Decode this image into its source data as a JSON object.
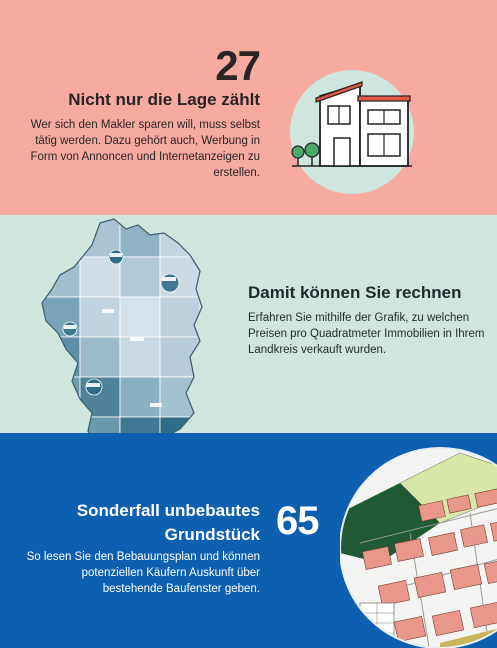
{
  "section1": {
    "number": "27",
    "heading": "Nicht nur die Lage zählt",
    "body": "Wer sich den Makler sparen will, muss selbst tätig werden. Dazu gehört auch, Werbung in Form von Annoncen und Internetanzeigen zu erstellen.",
    "icon": "house-icon"
  },
  "section2": {
    "heading": "Damit können Sie rechnen",
    "body": "Erfahren Sie mithilfe der Grafik, zu welchen Preisen pro Quadratmeter Immobilien in Ihrem Landkreis verkauft wurden.",
    "image": "germany-price-map"
  },
  "section3": {
    "heading": "Sonderfall unbebautes Grundstück",
    "number": "65",
    "body": "So lesen Sie den Bebauungsplan und können potenziellen Käufern Auskunft über bestehende Baufenster geben.",
    "image": "development-plan"
  },
  "colors": {
    "salmon": "#f6aaa0",
    "mint": "#cfe6df",
    "blue": "#0d5fb0",
    "dark": "#2a2424"
  }
}
